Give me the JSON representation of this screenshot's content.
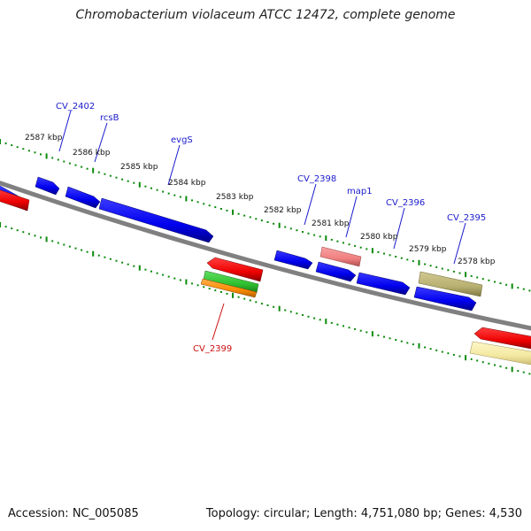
{
  "title": "Chromobacterium violaceum ATCC 12472, complete genome",
  "footer": {
    "accession": "Accession: NC_005085",
    "summary": "Topology: circular; Length: 4,751,080 bp; Genes: 4,530"
  },
  "colors": {
    "backbone": "#808080",
    "ruler": "#0a8a0a",
    "gene_blue": "#0000ee",
    "gene_label_blue": "#1a1acc",
    "gene_red": "#ee0000",
    "gene_label_red": "#cc1010",
    "gene_pink": "#f08080",
    "gene_olive": "#b8b070",
    "gene_yellow": "#f3e8a0",
    "gene_green": "#30c030",
    "gene_orange": "#ff8c00"
  },
  "scale_labels": [
    "2587 kbp",
    "2586 kbp",
    "2585 kbp",
    "2584 kbp",
    "2583 kbp",
    "2582 kbp",
    "2581 kbp",
    "2580 kbp",
    "2579 kbp",
    "2578 kbp"
  ],
  "gene_labels": [
    {
      "text": "CV_2402",
      "color": "blue"
    },
    {
      "text": "rcsB",
      "color": "blue"
    },
    {
      "text": "evgS",
      "color": "blue"
    },
    {
      "text": "CV_2398",
      "color": "blue"
    },
    {
      "text": "map1",
      "color": "blue"
    },
    {
      "text": "CV_2396",
      "color": "blue"
    },
    {
      "text": "CV_2395",
      "color": "blue"
    },
    {
      "text": "CV_2399",
      "color": "red"
    }
  ]
}
